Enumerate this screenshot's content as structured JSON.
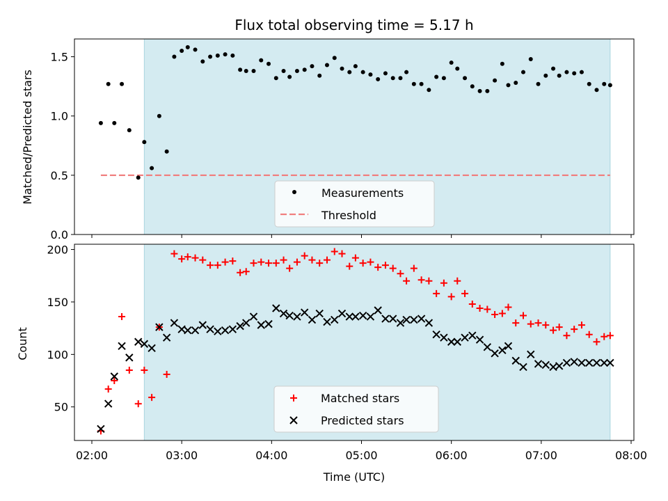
{
  "chart_data": [
    {
      "type": "scatter",
      "title": "Flux total observing time = 5.17 h",
      "xlabel": "",
      "ylabel": "Matched/Predicted stars",
      "ylim": [
        0,
        1.65
      ],
      "yticks": [
        0.0,
        0.5,
        1.0,
        1.5
      ],
      "ytick_labels": [
        "0.0",
        "0.5",
        "1.0",
        "1.5"
      ],
      "xticks": [
        "02:00",
        "03:00",
        "04:00",
        "05:00",
        "06:00",
        "07:00",
        "08:00"
      ],
      "shaded_range": [
        "02:35",
        "07:46"
      ],
      "legend": {
        "placement": "lower-center",
        "entries": [
          "Measurements",
          "Threshold"
        ]
      },
      "threshold": {
        "name": "Threshold",
        "value": 0.5,
        "x_range": [
          "02:06",
          "07:46"
        ],
        "color": "#f07f7f"
      },
      "series": [
        {
          "name": "Measurements",
          "color": "#000000",
          "x": [
            "02:06",
            "02:11",
            "02:15",
            "02:20",
            "02:25",
            "02:31",
            "02:35",
            "02:40",
            "02:45",
            "02:50",
            "02:55",
            "03:00",
            "03:04",
            "03:09",
            "03:14",
            "03:19",
            "03:24",
            "03:29",
            "03:34",
            "03:39",
            "03:43",
            "03:48",
            "03:53",
            "03:58",
            "04:03",
            "04:08",
            "04:12",
            "04:17",
            "04:22",
            "04:27",
            "04:32",
            "04:37",
            "04:42",
            "04:47",
            "04:52",
            "04:56",
            "05:01",
            "05:06",
            "05:11",
            "05:16",
            "05:21",
            "05:26",
            "05:30",
            "05:35",
            "05:40",
            "05:45",
            "05:50",
            "05:55",
            "06:00",
            "06:04",
            "06:09",
            "06:14",
            "06:19",
            "06:24",
            "06:29",
            "06:34",
            "06:38",
            "06:43",
            "06:48",
            "06:53",
            "06:58",
            "07:03",
            "07:08",
            "07:12",
            "07:17",
            "07:22",
            "07:27",
            "07:32",
            "07:37",
            "07:42",
            "07:46"
          ],
          "y": [
            0.94,
            1.27,
            0.94,
            1.27,
            0.88,
            0.48,
            0.78,
            0.56,
            1.0,
            0.7,
            1.5,
            1.55,
            1.58,
            1.56,
            1.46,
            1.5,
            1.51,
            1.52,
            1.51,
            1.39,
            1.38,
            1.38,
            1.47,
            1.44,
            1.32,
            1.38,
            1.33,
            1.38,
            1.39,
            1.42,
            1.34,
            1.43,
            1.49,
            1.4,
            1.37,
            1.42,
            1.37,
            1.35,
            1.31,
            1.36,
            1.32,
            1.32,
            1.37,
            1.27,
            1.27,
            1.22,
            1.33,
            1.32,
            1.45,
            1.4,
            1.32,
            1.25,
            1.21,
            1.21,
            1.3,
            1.44,
            1.26,
            1.28,
            1.37,
            1.48,
            1.27,
            1.34,
            1.4,
            1.34,
            1.37,
            1.36,
            1.37,
            1.27,
            1.22,
            1.27,
            1.26
          ]
        }
      ]
    },
    {
      "type": "scatter",
      "title": "",
      "xlabel": "Time (UTC)",
      "ylabel": "Count",
      "ylim": [
        18,
        205
      ],
      "yticks": [
        50,
        100,
        150,
        200
      ],
      "ytick_labels": [
        "50",
        "100",
        "150",
        "200"
      ],
      "xticks": [
        "02:00",
        "03:00",
        "04:00",
        "05:00",
        "06:00",
        "07:00",
        "08:00"
      ],
      "shaded_range": [
        "02:35",
        "07:46"
      ],
      "legend": {
        "placement": "lower-center",
        "entries": [
          "Matched stars",
          "Predicted stars"
        ]
      },
      "series": [
        {
          "name": "Matched stars",
          "color": "#ff0000",
          "marker": "plus",
          "x": [
            "02:06",
            "02:11",
            "02:15",
            "02:20",
            "02:25",
            "02:31",
            "02:35",
            "02:40",
            "02:45",
            "02:50",
            "02:55",
            "03:00",
            "03:04",
            "03:09",
            "03:14",
            "03:19",
            "03:24",
            "03:29",
            "03:34",
            "03:39",
            "03:43",
            "03:48",
            "03:53",
            "03:58",
            "04:03",
            "04:08",
            "04:12",
            "04:17",
            "04:22",
            "04:27",
            "04:32",
            "04:37",
            "04:42",
            "04:47",
            "04:52",
            "04:56",
            "05:01",
            "05:06",
            "05:11",
            "05:16",
            "05:21",
            "05:26",
            "05:30",
            "05:35",
            "05:40",
            "05:45",
            "05:50",
            "05:55",
            "06:00",
            "06:04",
            "06:09",
            "06:14",
            "06:19",
            "06:24",
            "06:29",
            "06:34",
            "06:38",
            "06:43",
            "06:48",
            "06:53",
            "06:58",
            "07:03",
            "07:08",
            "07:12",
            "07:17",
            "07:22",
            "07:27",
            "07:32",
            "07:37",
            "07:42",
            "07:46"
          ],
          "y": [
            27,
            67,
            75,
            136,
            85,
            53,
            85,
            59,
            126,
            81,
            196,
            191,
            193,
            192,
            190,
            185,
            185,
            188,
            189,
            178,
            179,
            187,
            188,
            187,
            187,
            190,
            182,
            188,
            194,
            190,
            187,
            190,
            198,
            196,
            184,
            192,
            187,
            188,
            183,
            185,
            182,
            177,
            170,
            182,
            171,
            170,
            158,
            168,
            155,
            170,
            158,
            148,
            144,
            143,
            138,
            139,
            145,
            130,
            137,
            129,
            130,
            128,
            123,
            126,
            118,
            124,
            128,
            119,
            112,
            117,
            118
          ]
        },
        {
          "name": "Predicted stars",
          "color": "#000000",
          "marker": "x",
          "x": [
            "02:06",
            "02:11",
            "02:15",
            "02:20",
            "02:25",
            "02:31",
            "02:35",
            "02:40",
            "02:45",
            "02:50",
            "02:55",
            "03:00",
            "03:04",
            "03:09",
            "03:14",
            "03:19",
            "03:24",
            "03:29",
            "03:34",
            "03:39",
            "03:43",
            "03:48",
            "03:53",
            "03:58",
            "04:03",
            "04:08",
            "04:12",
            "04:17",
            "04:22",
            "04:27",
            "04:32",
            "04:37",
            "04:42",
            "04:47",
            "04:52",
            "04:56",
            "05:01",
            "05:06",
            "05:11",
            "05:16",
            "05:21",
            "05:26",
            "05:30",
            "05:35",
            "05:40",
            "05:45",
            "05:50",
            "05:55",
            "06:00",
            "06:04",
            "06:09",
            "06:14",
            "06:19",
            "06:24",
            "06:29",
            "06:34",
            "06:38",
            "06:43",
            "06:48",
            "06:53",
            "06:58",
            "07:03",
            "07:08",
            "07:12",
            "07:17",
            "07:22",
            "07:27",
            "07:32",
            "07:37",
            "07:42",
            "07:46"
          ],
          "y": [
            29,
            53,
            79,
            108,
            97,
            112,
            110,
            106,
            126,
            116,
            130,
            124,
            123,
            123,
            128,
            124,
            122,
            123,
            124,
            127,
            130,
            136,
            128,
            129,
            144,
            139,
            137,
            136,
            140,
            133,
            139,
            131,
            133,
            139,
            136,
            136,
            137,
            136,
            142,
            134,
            134,
            130,
            133,
            133,
            134,
            130,
            119,
            116,
            112,
            112,
            116,
            118,
            114,
            107,
            101,
            104,
            108,
            94,
            88,
            100,
            91,
            90,
            88,
            89,
            92,
            93,
            92,
            92,
            92,
            92,
            92
          ]
        }
      ]
    }
  ]
}
